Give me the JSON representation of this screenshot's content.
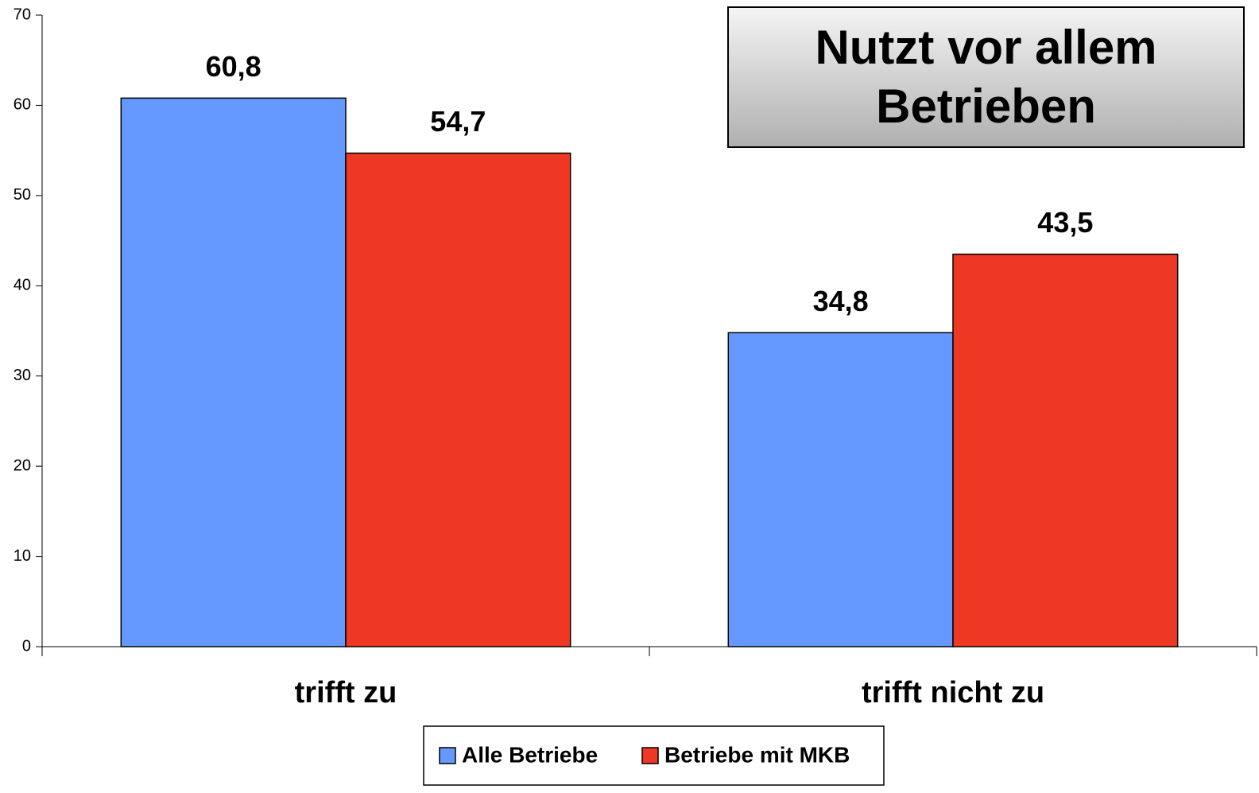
{
  "chart_data": {
    "type": "bar",
    "title": "Nutzt vor allem Betrieben",
    "categories": [
      "trifft zu",
      "trifft nicht zu"
    ],
    "series": [
      {
        "name": "Alle Betriebe",
        "color": "#6699ff",
        "values": [
          60.8,
          34.8
        ],
        "value_labels": [
          "60,8",
          "34,8"
        ]
      },
      {
        "name": "Betriebe mit MKB",
        "color": "#ee3824",
        "values": [
          54.7,
          43.5
        ],
        "value_labels": [
          "54,7",
          "43,5"
        ]
      }
    ],
    "ylim": [
      0,
      70
    ],
    "yticks": [
      0,
      10,
      20,
      30,
      40,
      50,
      60,
      70
    ],
    "grid": false,
    "legend": "bottom"
  }
}
